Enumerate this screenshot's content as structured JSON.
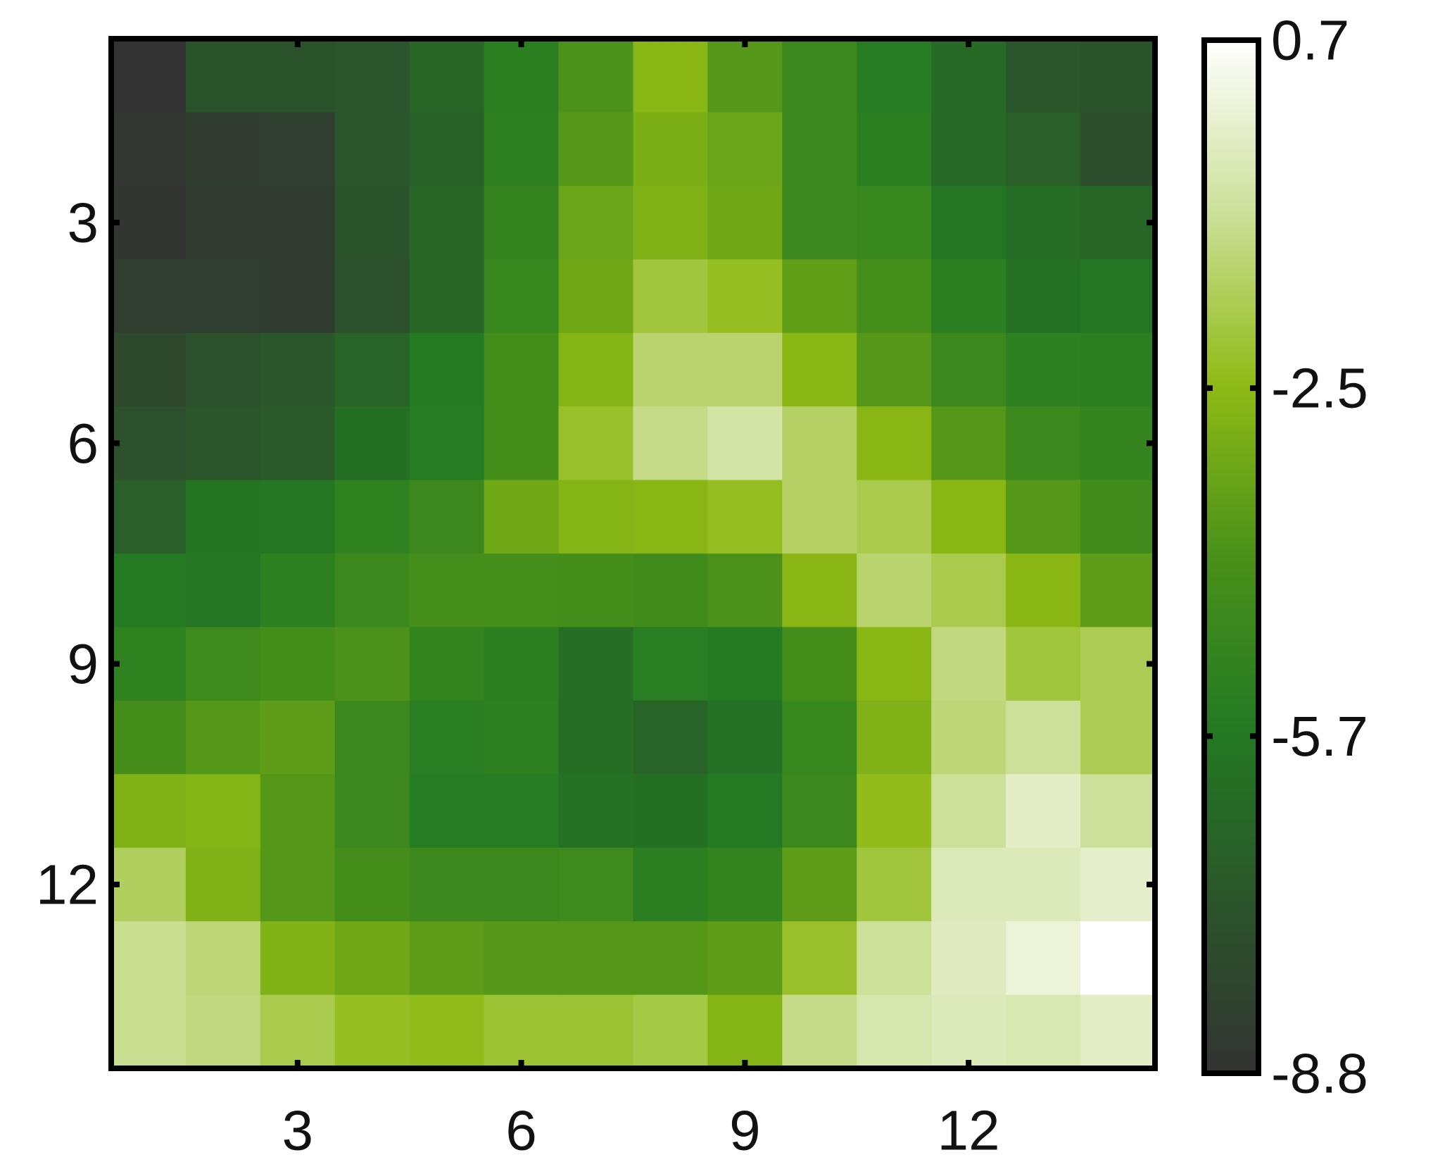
{
  "chart_data": {
    "type": "heatmap",
    "z": [
      [
        -8.8,
        -7.3,
        -7.3,
        -7.2,
        -6.5,
        -5.3,
        -4.0,
        -2.6,
        -3.8,
        -4.6,
        -5.5,
        -6.3,
        -7.2,
        -7.3
      ],
      [
        -8.6,
        -8.4,
        -8.3,
        -7.2,
        -6.7,
        -5.2,
        -3.8,
        -2.9,
        -3.3,
        -4.6,
        -5.3,
        -6.3,
        -6.8,
        -7.6
      ],
      [
        -8.7,
        -8.5,
        -8.4,
        -7.3,
        -6.5,
        -4.9,
        -3.3,
        -2.8,
        -3.2,
        -4.6,
        -4.8,
        -5.8,
        -6.2,
        -6.5
      ],
      [
        -8.3,
        -8.3,
        -8.4,
        -7.4,
        -6.5,
        -4.8,
        -3.2,
        -2.0,
        -2.3,
        -3.5,
        -4.2,
        -5.3,
        -6.0,
        -5.8
      ],
      [
        -7.8,
        -7.4,
        -7.2,
        -6.6,
        -5.6,
        -4.3,
        -2.7,
        -1.4,
        -1.4,
        -2.6,
        -3.8,
        -4.6,
        -5.2,
        -5.3
      ],
      [
        -7.4,
        -7.2,
        -7.0,
        -6.1,
        -5.5,
        -4.3,
        -2.2,
        -1.1,
        -0.7,
        -1.5,
        -2.6,
        -3.8,
        -4.6,
        -4.9
      ],
      [
        -6.8,
        -5.9,
        -5.8,
        -5.1,
        -4.6,
        -3.2,
        -2.7,
        -2.6,
        -2.3,
        -1.5,
        -1.8,
        -2.6,
        -3.8,
        -4.4
      ],
      [
        -5.6,
        -5.8,
        -5.2,
        -4.6,
        -4.2,
        -4.2,
        -4.3,
        -4.4,
        -4.0,
        -2.6,
        -1.4,
        -1.8,
        -2.6,
        -3.6
      ],
      [
        -5.1,
        -4.5,
        -4.3,
        -4.0,
        -5.0,
        -5.3,
        -6.2,
        -5.4,
        -5.6,
        -4.3,
        -2.6,
        -1.2,
        -2.0,
        -1.7
      ],
      [
        -4.3,
        -3.8,
        -3.6,
        -4.6,
        -5.4,
        -5.2,
        -6.2,
        -6.6,
        -6.0,
        -4.8,
        -2.8,
        -1.3,
        -0.9,
        -1.7
      ],
      [
        -2.8,
        -2.7,
        -3.8,
        -4.6,
        -5.5,
        -5.5,
        -6.0,
        -6.1,
        -5.6,
        -4.6,
        -2.4,
        -0.9,
        -0.2,
        -0.9
      ],
      [
        -1.6,
        -2.8,
        -3.8,
        -4.3,
        -4.6,
        -4.6,
        -4.5,
        -5.3,
        -5.0,
        -3.6,
        -2.0,
        -0.4,
        -0.4,
        -0.1
      ],
      [
        -1.0,
        -1.3,
        -2.8,
        -3.2,
        -3.6,
        -3.8,
        -3.8,
        -3.8,
        -3.6,
        -2.2,
        -0.9,
        -0.3,
        0.1,
        0.7
      ],
      [
        -1.0,
        -1.2,
        -1.8,
        -2.3,
        -2.4,
        -2.1,
        -2.1,
        -1.9,
        -2.7,
        -1.1,
        -0.6,
        -0.4,
        -0.5,
        -0.2
      ]
    ],
    "xlim": [
      0.5,
      14.5
    ],
    "ylim": [
      0.5,
      14.5
    ],
    "xticks": [
      3,
      6,
      9,
      12
    ],
    "yticks": [
      3,
      6,
      9,
      12
    ],
    "clim": [
      -8.8,
      0.7
    ],
    "cticks": [
      -8.8,
      -5.7,
      -2.5,
      0.7
    ],
    "colormap": [
      "#333333",
      "#2b552b",
      "#237a23",
      "#4a901a",
      "#8fba15",
      "#cde09a",
      "#ffffff"
    ]
  }
}
